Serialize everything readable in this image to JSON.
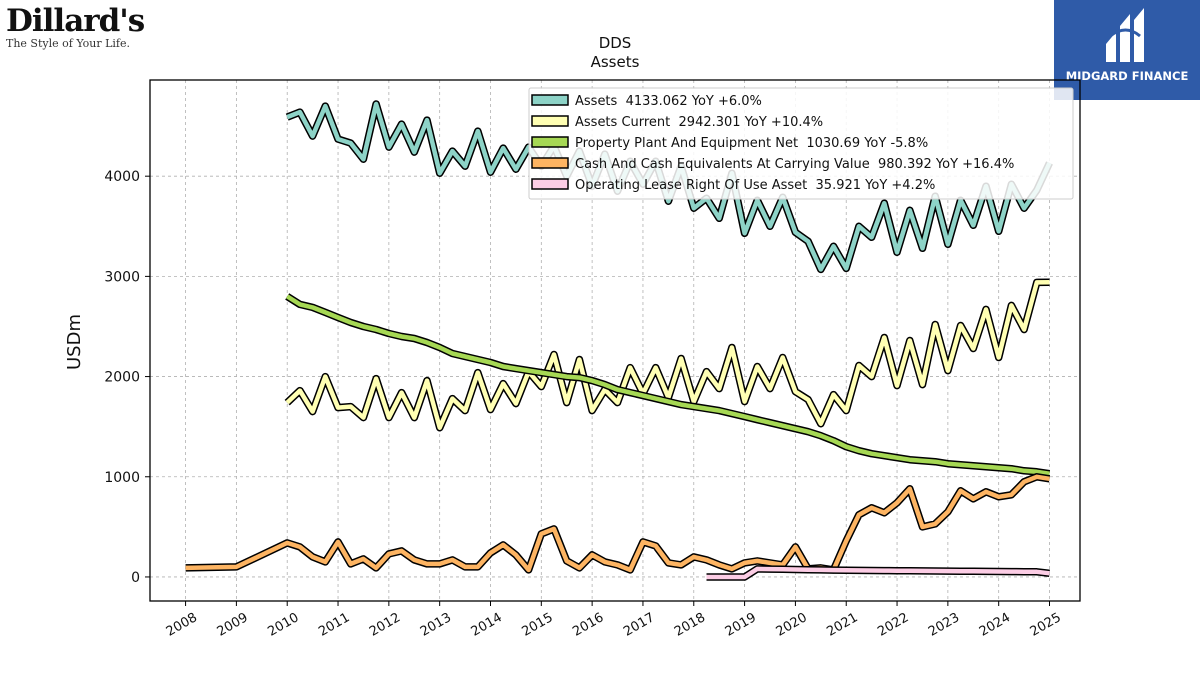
{
  "brand": {
    "name": "Dillard's",
    "tagline": "The Style of Your Life."
  },
  "partner": {
    "name": "MIDGARD FINANCE",
    "background": "#2f5ba8"
  },
  "chart_data": {
    "type": "line",
    "title": "DDS",
    "subtitle": "Assets",
    "xlabel": "",
    "ylabel": "USDm",
    "xlim": [
      2007.3,
      2025.6
    ],
    "ylim": [
      -240,
      4960
    ],
    "x_ticks": [
      2008,
      2009,
      2010,
      2011,
      2012,
      2013,
      2014,
      2015,
      2016,
      2017,
      2018,
      2019,
      2020,
      2021,
      2022,
      2023,
      2024,
      2025
    ],
    "y_ticks": [
      0,
      1000,
      2000,
      3000,
      4000
    ],
    "grid": true,
    "legend_position": "top-right",
    "series": [
      {
        "name": "Assets",
        "legend": "Assets  4133.062 YoY +6.0%",
        "color": "#8dd3c7",
        "x": [
          2010.0,
          2010.25,
          2010.5,
          2010.75,
          2011.0,
          2011.25,
          2011.5,
          2011.75,
          2012.0,
          2012.25,
          2012.5,
          2012.75,
          2013.0,
          2013.25,
          2013.5,
          2013.75,
          2014.0,
          2014.25,
          2014.5,
          2014.75,
          2015.0,
          2015.25,
          2015.5,
          2015.75,
          2016.0,
          2016.25,
          2016.5,
          2016.75,
          2017.0,
          2017.25,
          2017.5,
          2017.75,
          2018.0,
          2018.25,
          2018.5,
          2018.75,
          2019.0,
          2019.25,
          2019.5,
          2019.75,
          2020.0,
          2020.25,
          2020.5,
          2020.75,
          2021.0,
          2021.25,
          2021.5,
          2021.75,
          2022.0,
          2022.25,
          2022.5,
          2022.75,
          2023.0,
          2023.25,
          2023.5,
          2023.75,
          2024.0,
          2024.25,
          2024.5,
          2024.75,
          2025.0
        ],
        "y": [
          4590,
          4640,
          4400,
          4700,
          4370,
          4330,
          4170,
          4720,
          4290,
          4520,
          4240,
          4560,
          4030,
          4250,
          4100,
          4450,
          4040,
          4280,
          4070,
          4290,
          4100,
          4300,
          4000,
          4250,
          3900,
          4220,
          3850,
          4150,
          3920,
          4150,
          3750,
          4100,
          3680,
          3780,
          3580,
          4030,
          3430,
          3760,
          3500,
          3790,
          3440,
          3350,
          3070,
          3300,
          3080,
          3500,
          3390,
          3730,
          3240,
          3660,
          3280,
          3800,
          3320,
          3760,
          3510,
          3900,
          3450,
          3920,
          3680,
          3860,
          4133
        ]
      },
      {
        "name": "Assets Current",
        "legend": "Assets Current  2942.301 YoY +10.4%",
        "color": "#ffffb3",
        "x": [
          2010.0,
          2010.25,
          2010.5,
          2010.75,
          2011.0,
          2011.25,
          2011.5,
          2011.75,
          2012.0,
          2012.25,
          2012.5,
          2012.75,
          2013.0,
          2013.25,
          2013.5,
          2013.75,
          2014.0,
          2014.25,
          2014.5,
          2014.75,
          2015.0,
          2015.25,
          2015.5,
          2015.75,
          2016.0,
          2016.25,
          2016.5,
          2016.75,
          2017.0,
          2017.25,
          2017.5,
          2017.75,
          2018.0,
          2018.25,
          2018.5,
          2018.75,
          2019.0,
          2019.25,
          2019.5,
          2019.75,
          2020.0,
          2020.25,
          2020.5,
          2020.75,
          2021.0,
          2021.25,
          2021.5,
          2021.75,
          2022.0,
          2022.25,
          2022.5,
          2022.75,
          2023.0,
          2023.25,
          2023.5,
          2023.75,
          2024.0,
          2024.25,
          2024.5,
          2024.75,
          2025.0
        ],
        "y": [
          1740,
          1860,
          1650,
          2000,
          1690,
          1700,
          1590,
          1980,
          1590,
          1840,
          1590,
          1960,
          1490,
          1780,
          1660,
          2040,
          1670,
          1930,
          1730,
          2050,
          1900,
          2220,
          1740,
          2170,
          1660,
          1870,
          1740,
          2090,
          1830,
          2090,
          1790,
          2180,
          1750,
          2050,
          1880,
          2290,
          1750,
          2100,
          1880,
          2190,
          1850,
          1770,
          1530,
          1820,
          1660,
          2110,
          2000,
          2390,
          1910,
          2360,
          1920,
          2520,
          2060,
          2510,
          2280,
          2670,
          2190,
          2710,
          2470,
          2940,
          2942
        ]
      },
      {
        "name": "Property Plant And Equipment Net",
        "legend": "Property Plant And Equipment Net  1030.69 YoY -5.8%",
        "color": "#a6d854",
        "x": [
          2010.0,
          2010.25,
          2010.5,
          2010.75,
          2011.0,
          2011.25,
          2011.5,
          2011.75,
          2012.0,
          2012.25,
          2012.5,
          2012.75,
          2013.0,
          2013.25,
          2013.5,
          2013.75,
          2014.0,
          2014.25,
          2014.5,
          2014.75,
          2015.0,
          2015.25,
          2015.5,
          2015.75,
          2016.0,
          2016.25,
          2016.5,
          2016.75,
          2017.0,
          2017.25,
          2017.5,
          2017.75,
          2018.0,
          2018.25,
          2018.5,
          2018.75,
          2019.0,
          2019.25,
          2019.5,
          2019.75,
          2020.0,
          2020.25,
          2020.5,
          2020.75,
          2021.0,
          2021.25,
          2021.5,
          2021.75,
          2022.0,
          2022.25,
          2022.5,
          2022.75,
          2023.0,
          2023.25,
          2023.5,
          2023.75,
          2024.0,
          2024.25,
          2024.5,
          2024.75,
          2025.0
        ],
        "y": [
          2800,
          2720,
          2690,
          2640,
          2590,
          2540,
          2500,
          2470,
          2430,
          2400,
          2380,
          2340,
          2290,
          2230,
          2200,
          2170,
          2140,
          2100,
          2080,
          2060,
          2040,
          2020,
          2000,
          1990,
          1960,
          1920,
          1870,
          1840,
          1810,
          1780,
          1750,
          1720,
          1700,
          1680,
          1660,
          1630,
          1600,
          1570,
          1540,
          1510,
          1480,
          1450,
          1410,
          1360,
          1300,
          1260,
          1230,
          1210,
          1190,
          1170,
          1160,
          1150,
          1130,
          1120,
          1110,
          1100,
          1090,
          1080,
          1060,
          1050,
          1031
        ]
      },
      {
        "name": "Cash And Cash Equivalents At Carrying Value",
        "legend": "Cash And Cash Equivalents At Carrying Value  980.392 YoY +16.4%",
        "color": "#fdb462",
        "x": [
          2008.0,
          2009.0,
          2010.0,
          2010.25,
          2010.5,
          2010.75,
          2011.0,
          2011.25,
          2011.5,
          2011.75,
          2012.0,
          2012.25,
          2012.5,
          2012.75,
          2013.0,
          2013.25,
          2013.5,
          2013.75,
          2014.0,
          2014.25,
          2014.5,
          2014.75,
          2015.0,
          2015.25,
          2015.5,
          2015.75,
          2016.0,
          2016.25,
          2016.5,
          2016.75,
          2017.0,
          2017.25,
          2017.5,
          2017.75,
          2018.0,
          2018.25,
          2018.5,
          2018.75,
          2019.0,
          2019.25,
          2019.5,
          2019.75,
          2020.0,
          2020.25,
          2020.5,
          2020.75,
          2021.0,
          2021.25,
          2021.5,
          2021.75,
          2022.0,
          2022.25,
          2022.5,
          2022.75,
          2023.0,
          2023.25,
          2023.5,
          2023.75,
          2024.0,
          2024.25,
          2024.5,
          2024.75,
          2025.0
        ],
        "y": [
          90,
          100,
          340,
          300,
          200,
          150,
          350,
          130,
          180,
          90,
          230,
          260,
          170,
          130,
          130,
          170,
          100,
          100,
          240,
          320,
          220,
          70,
          430,
          480,
          160,
          90,
          220,
          150,
          120,
          70,
          350,
          310,
          140,
          120,
          200,
          170,
          120,
          80,
          140,
          160,
          140,
          120,
          300,
          80,
          90,
          70,
          360,
          620,
          690,
          640,
          740,
          880,
          500,
          530,
          650,
          860,
          780,
          850,
          800,
          820,
          950,
          1000,
          980
        ]
      },
      {
        "name": "Operating Lease Right Of Use Asset",
        "legend": "Operating Lease Right Of Use Asset  35.921 YoY +4.2%",
        "color": "#fccde5",
        "x": [
          2018.25,
          2018.5,
          2018.75,
          2019.0,
          2019.25,
          2019.5,
          2019.75,
          2020.0,
          2020.25,
          2020.5,
          2020.75,
          2021.0,
          2021.25,
          2021.5,
          2021.75,
          2022.0,
          2022.25,
          2022.5,
          2022.75,
          2023.0,
          2023.25,
          2023.5,
          2023.75,
          2024.0,
          2024.25,
          2024.5,
          2024.75,
          2025.0
        ],
        "y": [
          0,
          0,
          0,
          0,
          80,
          78,
          76,
          74,
          72,
          70,
          68,
          66,
          65,
          64,
          63,
          62,
          61,
          60,
          59,
          58,
          57,
          56,
          55,
          54,
          53,
          52,
          51,
          36
        ]
      }
    ]
  }
}
